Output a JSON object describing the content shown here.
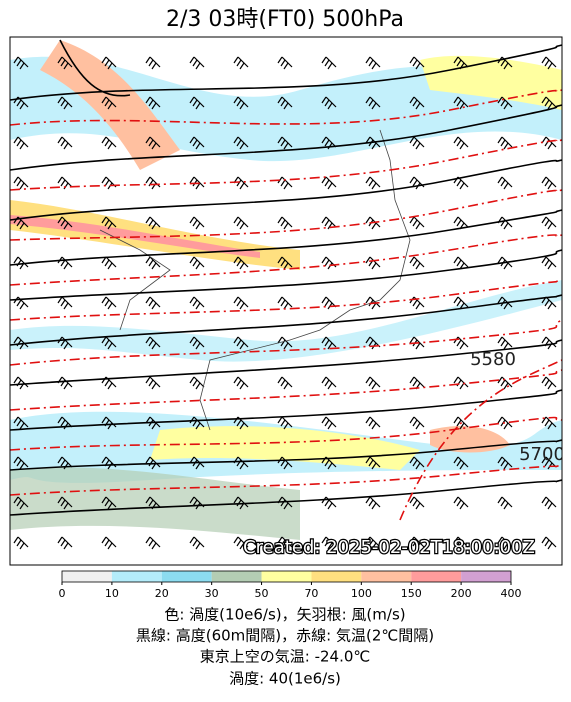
{
  "title": "2/3  03時(FT0)     500hPa",
  "contour_labels": [
    "5580",
    "5700"
  ],
  "created": "Created: 2025-02-02T18:00:00Z",
  "colorbar": {
    "ticks": [
      0,
      10,
      20,
      30,
      50,
      70,
      100,
      150,
      200,
      400
    ],
    "colors": [
      "#f0f0f0",
      "#b4ecfa",
      "#8cdcf0",
      "#b4cdb4",
      "#ffffa0",
      "#ffe080",
      "#ffc0a0",
      "#ff9c9c",
      "#d2a0d2"
    ]
  },
  "caption": [
    "色: 渦度(10e6/s)，矢羽根: 風(m/s)",
    "黒線: 高度(60m間隔)，赤線: 気温(2℃間隔)",
    "東京上空の気温: -24.0℃",
    "渦度: 40(1e6/s)"
  ]
}
